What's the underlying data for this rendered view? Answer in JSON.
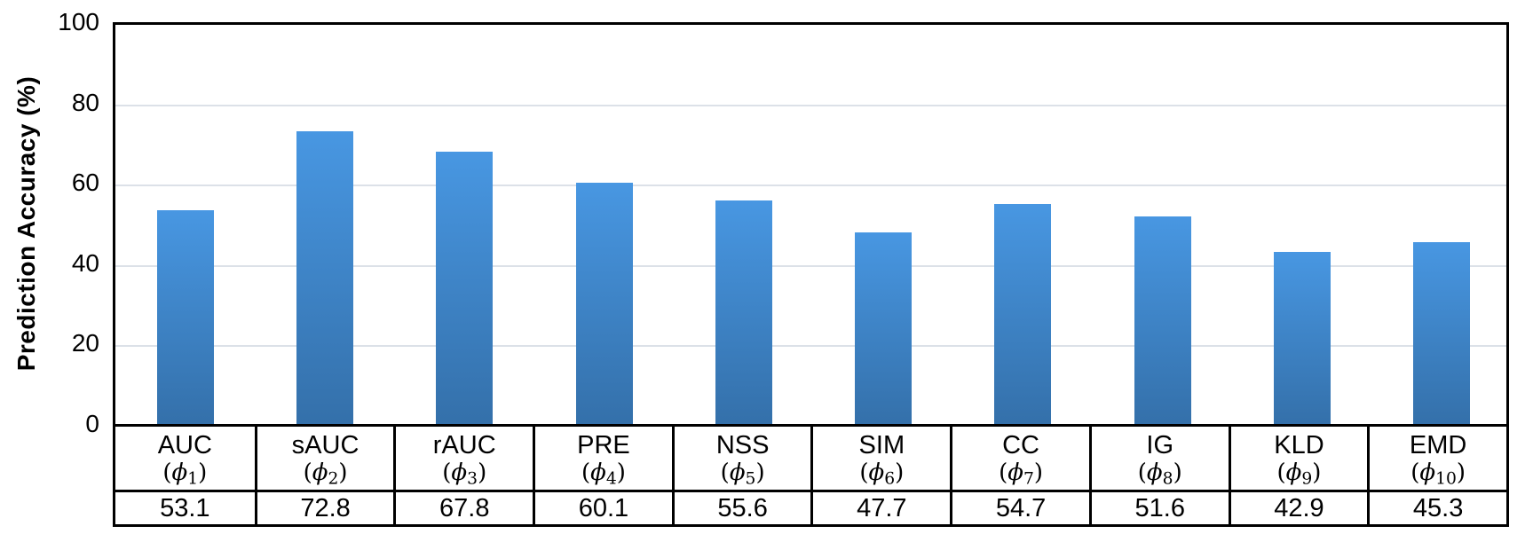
{
  "chart_data": {
    "type": "bar",
    "title": "",
    "xlabel": "",
    "ylabel": "Prediction Accuracy (%)",
    "ylim": [
      0,
      100
    ],
    "yticks": [
      0,
      20,
      40,
      60,
      80,
      100
    ],
    "grid": "horizontal-light",
    "legend": "none",
    "bar_color_top": "#4897e2",
    "bar_color_bottom": "#3470aa",
    "gridline_color": "#dce1e8",
    "categories": [
      "AUC",
      "sAUC",
      "rAUC",
      "PRE",
      "NSS",
      "SIM",
      "CC",
      "IG",
      "KLD",
      "EMD"
    ],
    "symbol_base": "ϕ",
    "symbol_open_paren": "(",
    "symbol_close_paren": ")",
    "symbol_subscripts": [
      "1",
      "2",
      "3",
      "4",
      "5",
      "6",
      "7",
      "8",
      "9",
      "10"
    ],
    "values": [
      53.1,
      72.8,
      67.8,
      60.1,
      55.6,
      47.7,
      54.7,
      51.6,
      42.9,
      45.3
    ]
  }
}
